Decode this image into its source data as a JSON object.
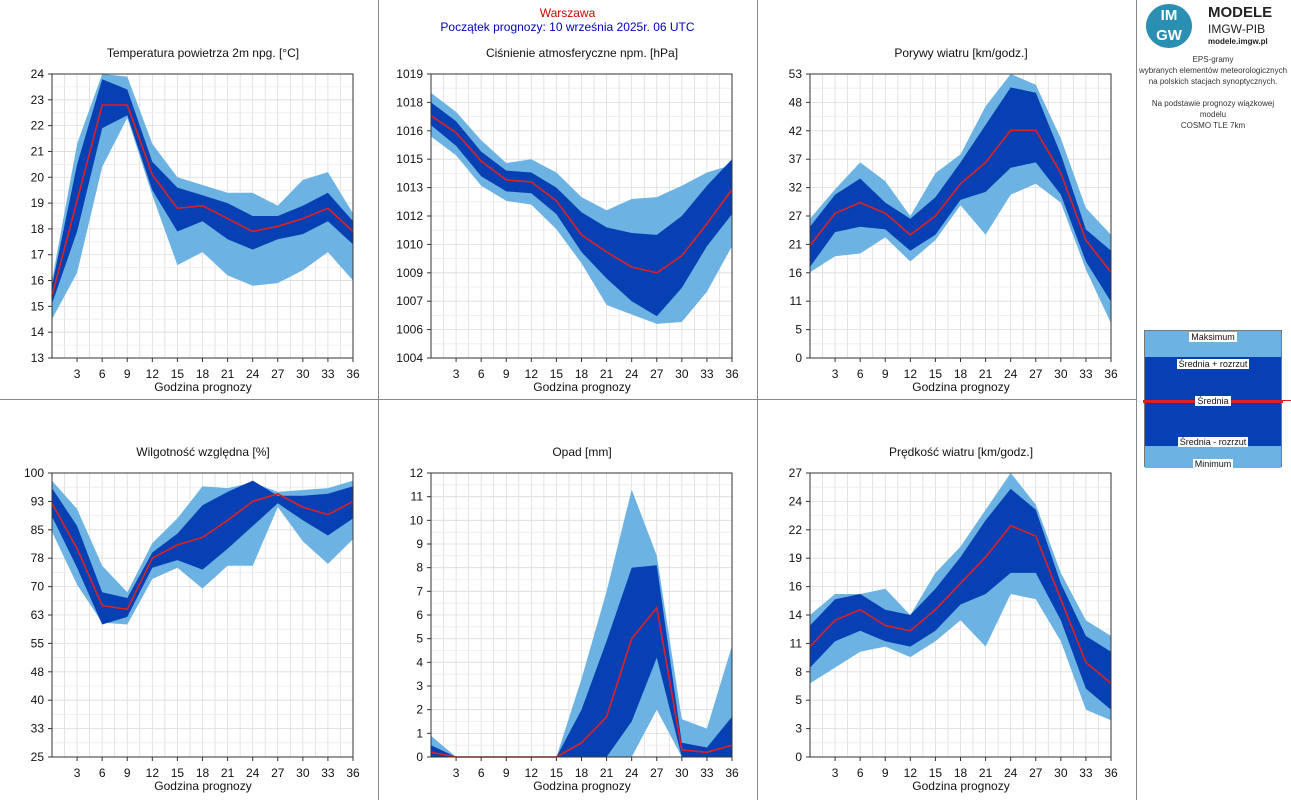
{
  "header": {
    "city": "Warszawa",
    "start": "Początek prognozy: 10 września 2025r. 06 UTC"
  },
  "logo": {
    "badge_top": "IM",
    "badge_bottom": "GW",
    "title": "MODELE",
    "org": "IMGW-PIB",
    "site": "modele.imgw.pl"
  },
  "description": {
    "line1": "EPS-gramy",
    "line2": "wybranych elementów meteorologicznych",
    "line3": "na polskich stacjach  synoptycznych.",
    "line4": "Na podstawie prognozy wiązkowej modelu",
    "line5": "COSMO TLE 7km"
  },
  "legend": {
    "max": "Maksimum",
    "mean_plus": "Średnia + rozrzut",
    "mean": "Średnia",
    "mean_minus": "Średnia - rozrzut",
    "min": "Minimum"
  },
  "colors": {
    "light": "#6cb3e3",
    "dark": "#0740b3",
    "mean": "#e02020",
    "title_city": "#d40000",
    "title_start": "#0000c0"
  },
  "chart_data": [
    {
      "type": "area",
      "title": "Temperatura powietrza 2m npg. [°C]",
      "xlabel": "Godzina prognozy",
      "x": [
        0,
        3,
        6,
        9,
        12,
        15,
        18,
        21,
        24,
        27,
        30,
        33,
        36
      ],
      "ylim": [
        13,
        24
      ],
      "yticks": [
        "13",
        "14",
        "15",
        "16",
        "17",
        "18",
        "19",
        "20",
        "21",
        "22",
        "23",
        "24"
      ],
      "yticks_val": [
        13,
        14,
        15,
        16,
        17,
        18,
        19,
        20,
        21,
        22,
        23,
        24
      ],
      "series": [
        {
          "name": "Maksimum",
          "values": [
            16.0,
            21.3,
            24.0,
            23.9,
            21.3,
            20.0,
            19.7,
            19.4,
            19.4,
            18.9,
            19.9,
            20.2,
            18.6
          ]
        },
        {
          "name": "Średnia + rozrzut",
          "values": [
            15.8,
            20.5,
            23.8,
            23.4,
            20.6,
            19.6,
            19.3,
            19.0,
            18.5,
            18.5,
            18.9,
            19.4,
            18.3
          ]
        },
        {
          "name": "Średnia",
          "values": [
            15.4,
            19.1,
            22.8,
            22.8,
            20.1,
            18.8,
            18.9,
            18.4,
            17.9,
            18.1,
            18.4,
            18.8,
            17.9
          ]
        },
        {
          "name": "Średnia - rozrzut",
          "values": [
            15.1,
            17.9,
            21.9,
            22.4,
            19.5,
            17.9,
            18.3,
            17.6,
            17.2,
            17.6,
            17.8,
            18.3,
            17.4
          ]
        },
        {
          "name": "Minimum",
          "values": [
            14.5,
            16.3,
            20.4,
            22.3,
            19.3,
            16.6,
            17.1,
            16.2,
            15.8,
            15.9,
            16.4,
            17.1,
            16.0
          ]
        }
      ]
    },
    {
      "type": "area",
      "title": "Ciśnienie atmosferyczne npm. [hPa]",
      "xlabel": "Godzina prognozy",
      "x": [
        0,
        3,
        6,
        9,
        12,
        15,
        18,
        21,
        24,
        27,
        30,
        33,
        36
      ],
      "ylim": [
        1004,
        1019
      ],
      "yticks": [
        "1004",
        "1006",
        "1007",
        "1009",
        "1010",
        "1012",
        "1013",
        "1015",
        "1016",
        "1018",
        "1019"
      ],
      "yticks_val": [
        1004,
        1005.5,
        1007,
        1008.5,
        1010,
        1011.5,
        1013,
        1014.5,
        1016,
        1017.5,
        1019
      ],
      "series": [
        {
          "name": "Maksimum",
          "values": [
            1018.0,
            1017.0,
            1015.5,
            1014.3,
            1014.5,
            1013.8,
            1012.5,
            1011.8,
            1012.4,
            1012.5,
            1013.1,
            1013.8,
            1014.2
          ]
        },
        {
          "name": "Średnia + rozrzut",
          "values": [
            1017.5,
            1016.5,
            1014.9,
            1013.9,
            1013.8,
            1013.0,
            1011.7,
            1010.9,
            1010.6,
            1010.5,
            1011.5,
            1013.1,
            1014.5
          ]
        },
        {
          "name": "Średnia",
          "values": [
            1016.8,
            1015.9,
            1014.4,
            1013.4,
            1013.3,
            1012.3,
            1010.5,
            1009.6,
            1008.8,
            1008.5,
            1009.4,
            1011.1,
            1012.9
          ]
        },
        {
          "name": "Średnia - rozrzut",
          "values": [
            1016.3,
            1015.2,
            1013.6,
            1012.8,
            1012.7,
            1011.6,
            1009.6,
            1008.2,
            1007.0,
            1006.2,
            1007.7,
            1009.9,
            1011.6
          ]
        },
        {
          "name": "Minimum",
          "values": [
            1015.7,
            1014.7,
            1013.1,
            1012.3,
            1012.1,
            1010.8,
            1009.0,
            1006.8,
            1006.3,
            1005.8,
            1005.9,
            1007.5,
            1009.9
          ]
        }
      ]
    },
    {
      "type": "area",
      "title": "Porywy wiatru [km/godz.]",
      "xlabel": "Godzina prognozy",
      "x": [
        0,
        3,
        6,
        9,
        12,
        15,
        18,
        21,
        24,
        27,
        30,
        33,
        36
      ],
      "ylim": [
        0,
        53
      ],
      "yticks": [
        "0",
        "5",
        "11",
        "16",
        "21",
        "27",
        "32",
        "37",
        "42",
        "48",
        "53"
      ],
      "yticks_val": [
        0,
        5.3,
        10.6,
        15.9,
        21.2,
        26.5,
        31.8,
        37.1,
        42.4,
        47.7,
        53
      ],
      "series": [
        {
          "name": "Maksimum",
          "values": [
            26.0,
            31.5,
            36.5,
            33.0,
            26.5,
            34.5,
            38.0,
            47.0,
            53.0,
            51.0,
            41.0,
            28.0,
            23.0
          ]
        },
        {
          "name": "Średnia + rozrzut",
          "values": [
            24.5,
            30.5,
            33.5,
            29.0,
            26.0,
            30.0,
            36.5,
            43.5,
            50.5,
            49.5,
            38.0,
            24.0,
            20.0
          ]
        },
        {
          "name": "Średnia",
          "values": [
            21.0,
            27.0,
            29.0,
            27.0,
            23.0,
            26.5,
            32.5,
            36.5,
            42.5,
            42.5,
            34.5,
            22.0,
            16.0
          ]
        },
        {
          "name": "Średnia - rozrzut",
          "values": [
            17.0,
            23.5,
            24.5,
            24.0,
            20.0,
            23.0,
            29.5,
            31.0,
            35.5,
            36.5,
            30.5,
            18.0,
            10.5
          ]
        },
        {
          "name": "Minimum",
          "values": [
            16.0,
            19.0,
            19.5,
            22.5,
            18.0,
            22.0,
            28.5,
            23.0,
            30.5,
            32.5,
            29.0,
            16.5,
            6.5
          ]
        }
      ]
    },
    {
      "type": "area",
      "title": "Wilgotność względna [%]",
      "xlabel": "Godzina prognozy",
      "x": [
        0,
        3,
        6,
        9,
        12,
        15,
        18,
        21,
        24,
        27,
        30,
        33,
        36
      ],
      "ylim": [
        25,
        100
      ],
      "yticks": [
        "25",
        "33",
        "40",
        "48",
        "55",
        "63",
        "70",
        "78",
        "85",
        "93",
        "100"
      ],
      "yticks_val": [
        25,
        32.5,
        40,
        47.5,
        55,
        62.5,
        70,
        77.5,
        85,
        92.5,
        100
      ],
      "series": [
        {
          "name": "Maksimum",
          "values": [
            98.0,
            90.5,
            75.5,
            68.5,
            81.5,
            88.0,
            96.5,
            96.0,
            97.5,
            95.0,
            95.5,
            96.0,
            98.0
          ]
        },
        {
          "name": "Średnia + rozrzut",
          "values": [
            96.0,
            86.0,
            68.5,
            67.0,
            79.0,
            84.0,
            91.5,
            95.0,
            98.0,
            94.0,
            94.0,
            94.5,
            96.5
          ]
        },
        {
          "name": "Średnia",
          "values": [
            92.0,
            80.0,
            65.0,
            64.0,
            77.5,
            81.0,
            83.0,
            87.5,
            92.5,
            94.5,
            91.0,
            89.0,
            92.5
          ]
        },
        {
          "name": "Średnia - rozrzut",
          "values": [
            88.5,
            75.0,
            60.0,
            62.0,
            75.0,
            77.0,
            74.5,
            80.0,
            86.0,
            92.0,
            87.5,
            83.5,
            88.0
          ]
        },
        {
          "name": "Minimum",
          "values": [
            84.5,
            70.5,
            60.5,
            60.0,
            72.0,
            75.0,
            69.5,
            75.5,
            75.5,
            91.0,
            82.0,
            76.0,
            82.5
          ]
        }
      ]
    },
    {
      "type": "area",
      "title": "Opad [mm]",
      "xlabel": "Godzina prognozy",
      "x": [
        0,
        3,
        6,
        9,
        12,
        15,
        18,
        21,
        24,
        27,
        30,
        33,
        36
      ],
      "ylim": [
        0,
        12
      ],
      "yticks": [
        "0",
        "1",
        "2",
        "3",
        "4",
        "5",
        "6",
        "7",
        "8",
        "9",
        "10",
        "11",
        "12"
      ],
      "yticks_val": [
        0,
        1,
        2,
        3,
        4,
        5,
        6,
        7,
        8,
        9,
        10,
        11,
        12
      ],
      "series": [
        {
          "name": "Maksimum",
          "values": [
            0.9,
            0.0,
            0.0,
            0.0,
            0.0,
            0.0,
            3.3,
            7.0,
            11.3,
            8.5,
            1.6,
            1.2,
            4.7
          ]
        },
        {
          "name": "Średnia + rozrzut",
          "values": [
            0.5,
            0.0,
            0.0,
            0.0,
            0.0,
            0.0,
            2.0,
            4.9,
            8.0,
            8.1,
            0.6,
            0.4,
            1.7
          ]
        },
        {
          "name": "Średnia",
          "values": [
            0.2,
            0.0,
            0.0,
            0.0,
            0.0,
            0.0,
            0.6,
            1.7,
            5.0,
            6.3,
            0.3,
            0.2,
            0.5
          ]
        },
        {
          "name": "Średnia - rozrzut",
          "values": [
            0.0,
            0.0,
            0.0,
            0.0,
            0.0,
            0.0,
            0.0,
            0.0,
            1.5,
            4.2,
            0.0,
            0.0,
            0.0
          ]
        },
        {
          "name": "Minimum",
          "values": [
            0.0,
            0.0,
            0.0,
            0.0,
            0.0,
            0.0,
            0.0,
            0.0,
            0.0,
            2.0,
            0.0,
            0.0,
            0.0
          ]
        }
      ]
    },
    {
      "type": "area",
      "title": "Prędkość wiatru [km/godz.]",
      "xlabel": "Godzina prognozy",
      "x": [
        0,
        3,
        6,
        9,
        12,
        15,
        18,
        21,
        24,
        27,
        30,
        33,
        36
      ],
      "ylim": [
        0,
        27
      ],
      "yticks": [
        "0",
        "3",
        "5",
        "8",
        "11",
        "14",
        "16",
        "19",
        "22",
        "24",
        "27"
      ],
      "yticks_val": [
        0,
        2.7,
        5.4,
        8.1,
        10.8,
        13.5,
        16.2,
        18.9,
        21.6,
        24.3,
        27
      ],
      "series": [
        {
          "name": "Maksimum",
          "values": [
            13.5,
            15.5,
            15.5,
            16.0,
            13.5,
            17.5,
            20.0,
            23.5,
            27.0,
            24.0,
            17.5,
            13.0,
            11.5
          ]
        },
        {
          "name": "Średnia + rozrzut",
          "values": [
            12.5,
            15.0,
            15.5,
            14.0,
            13.5,
            16.0,
            19.0,
            22.5,
            25.5,
            23.5,
            16.5,
            11.5,
            10.0
          ]
        },
        {
          "name": "Średnia",
          "values": [
            10.5,
            13.0,
            14.0,
            12.5,
            12.0,
            14.0,
            16.5,
            19.0,
            22.0,
            21.0,
            15.0,
            9.0,
            7.0
          ]
        },
        {
          "name": "Średnia - rozrzut",
          "values": [
            8.5,
            11.0,
            12.0,
            11.0,
            10.5,
            12.0,
            14.5,
            15.5,
            17.5,
            17.5,
            13.0,
            6.5,
            4.5
          ]
        },
        {
          "name": "Minimum",
          "values": [
            7.0,
            8.5,
            10.0,
            10.5,
            9.5,
            11.0,
            13.0,
            10.5,
            15.5,
            15.0,
            11.0,
            4.5,
            3.5
          ]
        }
      ]
    }
  ]
}
